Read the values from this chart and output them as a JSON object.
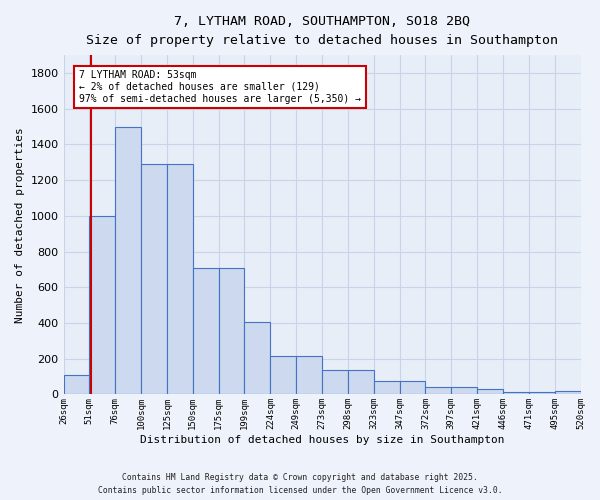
{
  "title_line1": "7, LYTHAM ROAD, SOUTHAMPTON, SO18 2BQ",
  "title_line2": "Size of property relative to detached houses in Southampton",
  "xlabel": "Distribution of detached houses by size in Southampton",
  "ylabel": "Number of detached properties",
  "bar_labels": [
    "26sqm",
    "51sqm",
    "76sqm",
    "100sqm",
    "125sqm",
    "150sqm",
    "175sqm",
    "199sqm",
    "224sqm",
    "249sqm",
    "273sqm",
    "298sqm",
    "323sqm",
    "347sqm",
    "372sqm",
    "397sqm",
    "421sqm",
    "446sqm",
    "471sqm",
    "495sqm",
    "520sqm"
  ],
  "bar_heights": [
    110,
    1000,
    1500,
    1290,
    1290,
    710,
    710,
    405,
    215,
    215,
    135,
    135,
    75,
    75,
    40,
    40,
    30,
    15,
    15,
    20
  ],
  "bar_color": "#ccd9ee",
  "bar_edge_color": "#4472c4",
  "ylim": [
    0,
    1900
  ],
  "yticks": [
    0,
    200,
    400,
    600,
    800,
    1000,
    1200,
    1400,
    1600,
    1800
  ],
  "annotation_line1": "7 LYTHAM ROAD: 53sqm",
  "annotation_line2": "← 2% of detached houses are smaller (129)",
  "annotation_line3": "97% of semi-detached houses are larger (5,350) →",
  "vline_color": "#cc0000",
  "annotation_border_color": "#cc0000",
  "grid_color": "#c8d4e8",
  "bg_color": "#e8eef8",
  "fig_bg_color": "#eef2fa",
  "footnote1": "Contains HM Land Registry data © Crown copyright and database right 2025.",
  "footnote2": "Contains public sector information licensed under the Open Government Licence v3.0."
}
